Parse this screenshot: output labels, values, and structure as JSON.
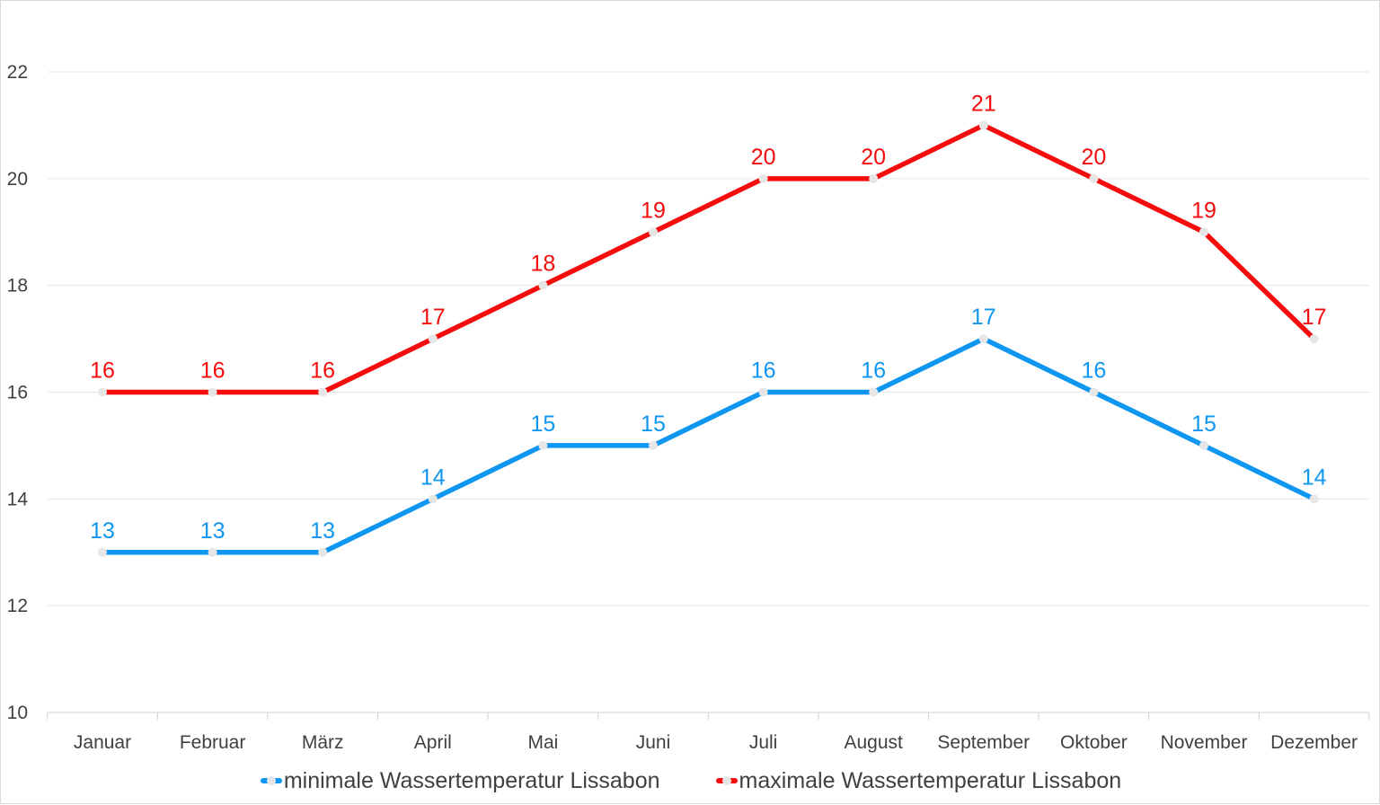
{
  "chart_data": {
    "type": "line",
    "title": "",
    "xlabel": "",
    "ylabel": "",
    "categories": [
      "Januar",
      "Februar",
      "März",
      "April",
      "Mai",
      "Juni",
      "Juli",
      "August",
      "September",
      "Oktober",
      "November",
      "Dezember"
    ],
    "series": [
      {
        "name": "minimale Wassertemperatur Lissabon",
        "color": "#0f96f0",
        "values": [
          13,
          13,
          13,
          14,
          15,
          15,
          16,
          16,
          17,
          16,
          15,
          14
        ]
      },
      {
        "name": "maximale Wassertemperatur Lissabon",
        "color": "#f50c0c",
        "values": [
          16,
          16,
          16,
          17,
          18,
          19,
          20,
          20,
          21,
          20,
          19,
          17
        ]
      }
    ],
    "ylim": [
      10,
      22
    ],
    "yticks": [
      10,
      12,
      14,
      16,
      18,
      20,
      22
    ],
    "grid": true,
    "data_labels": true,
    "marker_color": "#e6e6e6",
    "legend_position": "bottom"
  }
}
